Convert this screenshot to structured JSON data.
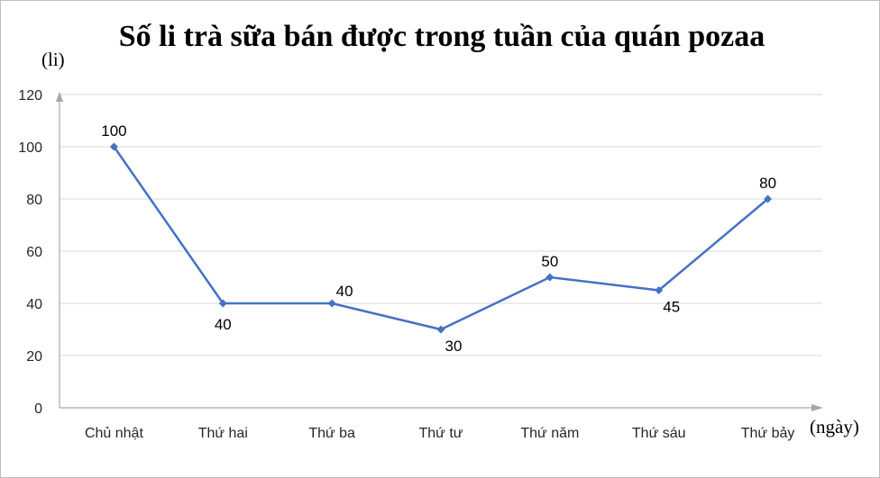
{
  "chart_data": {
    "type": "line",
    "title": "Số li trà sữa bán được trong tuần của quán pozaa",
    "ylabel": "(li)",
    "xlabel": "(ngày)",
    "categories": [
      "Chủ nhật",
      "Thứ hai",
      "Thứ ba",
      "Thứ tư",
      "Thứ năm",
      "Thứ sáu",
      "Thứ bảy"
    ],
    "series": [
      {
        "values": [
          100,
          40,
          40,
          30,
          50,
          45,
          80
        ]
      }
    ],
    "ylim": [
      0,
      120
    ],
    "yticks": [
      "0",
      "20",
      "40",
      "60",
      "80",
      "100",
      "120"
    ],
    "data_labels": [
      "100",
      "40",
      "40",
      "30",
      "50",
      "45",
      "80"
    ],
    "grid": true,
    "colors": {
      "line": "#4472c4",
      "grid": "#d9d9d9",
      "axis": "#a6a6a6"
    }
  }
}
